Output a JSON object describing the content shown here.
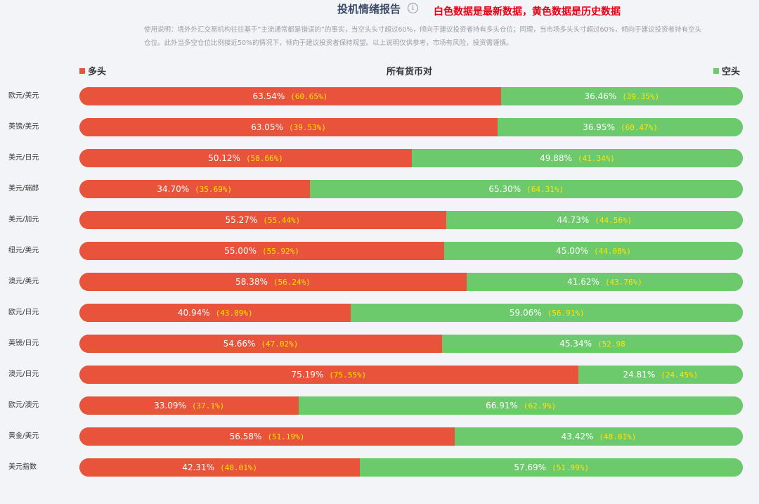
{
  "header": {
    "title": "投机情绪报告",
    "info_symbol": "i",
    "legend_note": "白色数据是最新数据，黄色数据是历史数据",
    "description": "使用说明：境外外汇交易机构往往基于“主流通常都是错误的”的事实，当空头头寸超过60%，倾向于建议投资者持有多头仓位；同理，当市场多头头寸超过60%，倾向于建议投资者持有空头仓位。此外当多空仓位比例接近50%的情况下，倾向于建议投资者保持观望。以上说明仅供参考，市场有风险，投资需谨慎。"
  },
  "labels": {
    "long": "多头",
    "center": "所有货币对",
    "short": "空头"
  },
  "colors": {
    "long": "#e8533b",
    "short": "#6cc96c",
    "current_text": "#ffffff",
    "history_text": "#ffe600",
    "note_text": "#e60012"
  },
  "chart_data": {
    "type": "bar",
    "orientation": "horizontal",
    "stacked": true,
    "title": "投机情绪报告",
    "categories": [
      "欧元/美元",
      "英镑/美元",
      "美元/日元",
      "美元/瑞郎",
      "美元/加元",
      "纽元/美元",
      "澳元/美元",
      "欧元/日元",
      "英镑/日元",
      "澳元/日元",
      "欧元/澳元",
      "黄金/美元",
      "美元指数"
    ],
    "series": [
      {
        "name": "多头",
        "values": [
          63.54,
          63.05,
          50.12,
          34.7,
          55.27,
          55.0,
          58.38,
          40.94,
          54.66,
          75.19,
          33.09,
          56.58,
          42.31
        ],
        "labels": [
          "63.54%",
          "63.05%",
          "50.12%",
          "34.70%",
          "55.27%",
          "55.00%",
          "58.38%",
          "40.94%",
          "54.66%",
          "75.19%",
          "33.09%",
          "56.58%",
          "42.31%"
        ],
        "history_labels": [
          "(60.65%)",
          "(39.53%)",
          "(58.66%)",
          "(35.69%)",
          "(55.44%)",
          "(55.92%)",
          "(56.24%)",
          "(43.09%)",
          "(47.02%)",
          "(75.55%)",
          "(37.1%)",
          "(51.19%)",
          "(48.01%)"
        ]
      },
      {
        "name": "空头",
        "values": [
          36.46,
          36.95,
          49.88,
          65.3,
          44.73,
          45.0,
          41.62,
          59.06,
          45.34,
          24.81,
          66.91,
          43.42,
          57.69
        ],
        "labels": [
          "36.46%",
          "36.95%",
          "49.88%",
          "65.30%",
          "44.73%",
          "45.00%",
          "41.62%",
          "59.06%",
          "45.34%",
          "24.81%",
          "66.91%",
          "43.42%",
          "57.69%"
        ],
        "history_labels": [
          "(39.35%)",
          "(60.47%)",
          "(41.34%)",
          "(64.31%)",
          "(44.56%)",
          "(44.08%)",
          "(43.76%)",
          "(56.91%)",
          "(52.98",
          "(24.45%)",
          "(62.9%)",
          "(48.81%)",
          "(51.99%)"
        ]
      }
    ],
    "xlim": [
      0,
      100
    ]
  }
}
